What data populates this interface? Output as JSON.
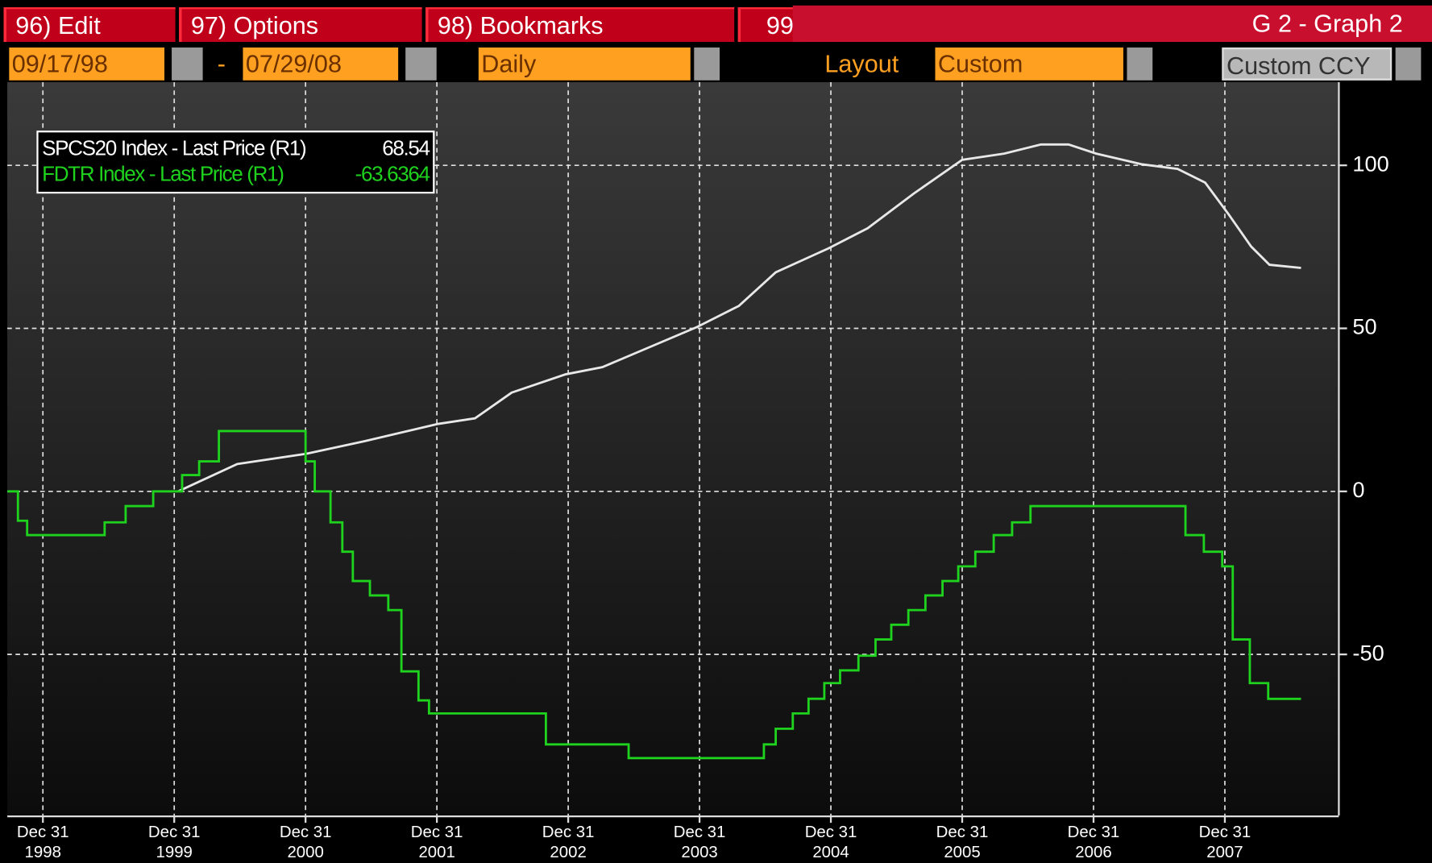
{
  "toolbar": {
    "tabs": [
      "96)  Edit",
      "97)  Options",
      "98)  Bookmarks",
      "99"
    ],
    "screen_title": "G 2 - Graph 2",
    "start_date": "09/17/98",
    "date_separator": "-",
    "end_date": "07/29/08",
    "period": "Daily",
    "layout_label": "Layout",
    "layout": "Custom",
    "currency": "Custom CCY"
  },
  "chart_data": {
    "type": "line",
    "series": [
      {
        "name": "SPCS20 Index - Last Price (R1)",
        "color": "#e8e8e8",
        "step": false,
        "x": [
          2000.03,
          2000.48,
          2001.0,
          2001.45,
          2002.01,
          2002.29,
          2002.57,
          2002.98,
          2003.26,
          2003.98,
          2004.3,
          2004.58,
          2004.98,
          2005.28,
          2005.63,
          2006.0,
          2006.32,
          2006.6,
          2006.81,
          2007.02,
          2007.37,
          2007.64,
          2007.85,
          2008.03,
          2008.2,
          2008.34,
          2008.58
        ],
        "values": [
          0,
          8.4,
          11.5,
          15.4,
          20.7,
          22.4,
          30.3,
          35.9,
          38.1,
          50.4,
          56.9,
          67.2,
          74.5,
          80.7,
          91.3,
          101.7,
          103.6,
          106.4,
          106.4,
          103.6,
          100.3,
          98.9,
          94.7,
          84.9,
          75.1,
          69.5,
          68.54
        ]
      },
      {
        "name": "FDTR Index - Last Price (R1)",
        "color": "#1ed21e",
        "step": true,
        "x": [
          1998.73,
          1998.81,
          1998.88,
          1999.47,
          1999.63,
          1999.84,
          2000.06,
          2000.19,
          2000.34,
          2001.0,
          2001.07,
          2001.19,
          2001.28,
          2001.36,
          2001.49,
          2001.63,
          2001.73,
          2001.86,
          2001.94,
          2002.83,
          2003.46,
          2004.49,
          2004.58,
          2004.71,
          2004.83,
          2004.95,
          2005.07,
          2005.21,
          2005.34,
          2005.46,
          2005.59,
          2005.72,
          2005.85,
          2005.97,
          2006.1,
          2006.24,
          2006.38,
          2006.52,
          2007.7,
          2007.84,
          2007.98,
          2008.06,
          2008.19,
          2008.33,
          2008.58
        ],
        "values": [
          0,
          -9,
          -13.4,
          -9.5,
          -4.5,
          0,
          5,
          9.2,
          18.5,
          9.2,
          0,
          -9.5,
          -18.5,
          -27.5,
          -31.9,
          -36.4,
          -55.2,
          -64.1,
          -68.1,
          -77.6,
          -81.8,
          -77.6,
          -72.8,
          -68.1,
          -63.6,
          -58.8,
          -54.9,
          -50.4,
          -45.4,
          -40.9,
          -36.4,
          -31.9,
          -27.5,
          -23.0,
          -18.5,
          -13.4,
          -9.5,
          -4.5,
          -13.4,
          -18.5,
          -23.0,
          -45.4,
          -58.8,
          -63.6364,
          -63.6364
        ]
      }
    ],
    "xlim": [
      1998.729,
      2008.861
    ],
    "xticks": [
      {
        "value": 1999,
        "label": "Dec 31\n1998"
      },
      {
        "value": 2000,
        "label": "Dec 31\n1999"
      },
      {
        "value": 2001,
        "label": "Dec 31\n2000"
      },
      {
        "value": 2002,
        "label": "Dec 31\n2001"
      },
      {
        "value": 2003,
        "label": "Dec 31\n2002"
      },
      {
        "value": 2004,
        "label": "Dec 31\n2003"
      },
      {
        "value": 2005,
        "label": "Dec 31\n2004"
      },
      {
        "value": 2006,
        "label": "Dec 31\n2005"
      },
      {
        "value": 2007,
        "label": "Dec 31\n2006"
      },
      {
        "value": 2008,
        "label": "Dec 31\n2007"
      }
    ],
    "ylim": [
      -99.4,
      125.5
    ],
    "yticks": [
      100,
      50,
      0,
      -50
    ],
    "grid": true
  }
}
